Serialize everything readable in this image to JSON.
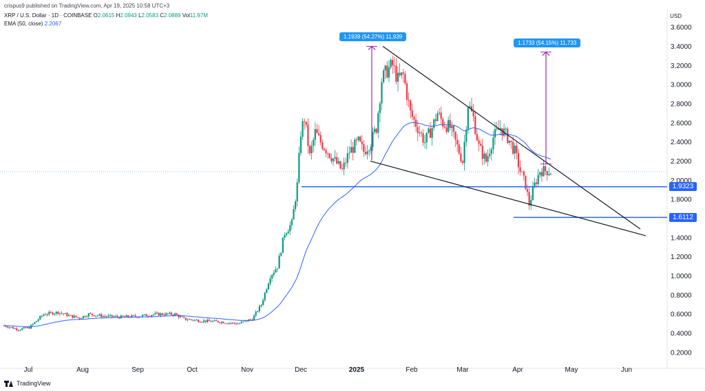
{
  "header": {
    "publisher": "crispus9 published on TradingView.com, Apr 19, 2025 10:58 UTC+3"
  },
  "legend": {
    "symbol": "XRP / U.S. Dollar · 1D · COINBASE",
    "ohlc": [
      {
        "k": "O",
        "v": "2.0615"
      },
      {
        "k": "H",
        "v": "2.0943"
      },
      {
        "k": "L",
        "v": "2.0583"
      },
      {
        "k": "C",
        "v": "2.0889"
      }
    ],
    "vol_label": "Vol",
    "vol_value": "11.97M",
    "ema_label": "EMA (50, close)",
    "ema_value": "2.2067"
  },
  "axis": {
    "currency": "USD"
  },
  "price_tags": [
    {
      "key": "support_1",
      "label": "1.9323",
      "color": "#2962ff"
    },
    {
      "key": "support_2",
      "label": "1.6112",
      "color": "#2962ff"
    }
  ],
  "measures": [
    {
      "key": "left",
      "label": "1.1939 (54.27%) 11,939"
    },
    {
      "key": "right",
      "label": "1.1733 (54.15%) 11,733"
    }
  ],
  "footer": {
    "brand": "TradingView"
  },
  "chart_data": {
    "type": "candlestick",
    "symbol": "XRP / U.S. Dollar",
    "timeframe": "1D",
    "ylim": [
      0.1,
      3.7
    ],
    "y_ticks": [
      "3.6000",
      "3.4000",
      "3.2000",
      "3.0000",
      "2.8000",
      "2.6000",
      "2.4000",
      "2.2000",
      "2.0000",
      "1.8000",
      "1.4000",
      "1.2000",
      "1.0000",
      "0.8000",
      "0.6000",
      "0.4000",
      "0.2000"
    ],
    "x_ticks": [
      "Jul",
      "Aug",
      "Sep",
      "Oct",
      "Nov",
      "Dec",
      "2025",
      "Feb",
      "Mar",
      "Apr",
      "May",
      "Jun"
    ],
    "x_ticks_bold": [
      "2025"
    ],
    "last_price": 2.0889,
    "ema_last": 2.2067,
    "support_levels": [
      1.9323,
      1.6112
    ],
    "colors": {
      "up": "#089981",
      "down": "#f23645",
      "ema": "#2962ff",
      "level": "#2962ff",
      "measure": "#9c27b0"
    },
    "grid": false,
    "legend": "top-left",
    "series": [
      {
        "name": "XRP / U.S. Dollar",
        "values_monthly_close": [
          {
            "x": "Jul",
            "y": 0.48
          },
          {
            "x": "Aug",
            "y": 0.58
          },
          {
            "x": "Sep",
            "y": 0.57
          },
          {
            "x": "Oct",
            "y": 0.58
          },
          {
            "x": "Nov",
            "y": 0.52
          },
          {
            "x": "Dec",
            "y": 2.6
          },
          {
            "x": "2025",
            "y": 2.2
          },
          {
            "x": "Feb",
            "y": 2.6
          },
          {
            "x": "Mar",
            "y": 2.25
          },
          {
            "x": "Apr",
            "y": 2.09
          }
        ]
      }
    ]
  }
}
